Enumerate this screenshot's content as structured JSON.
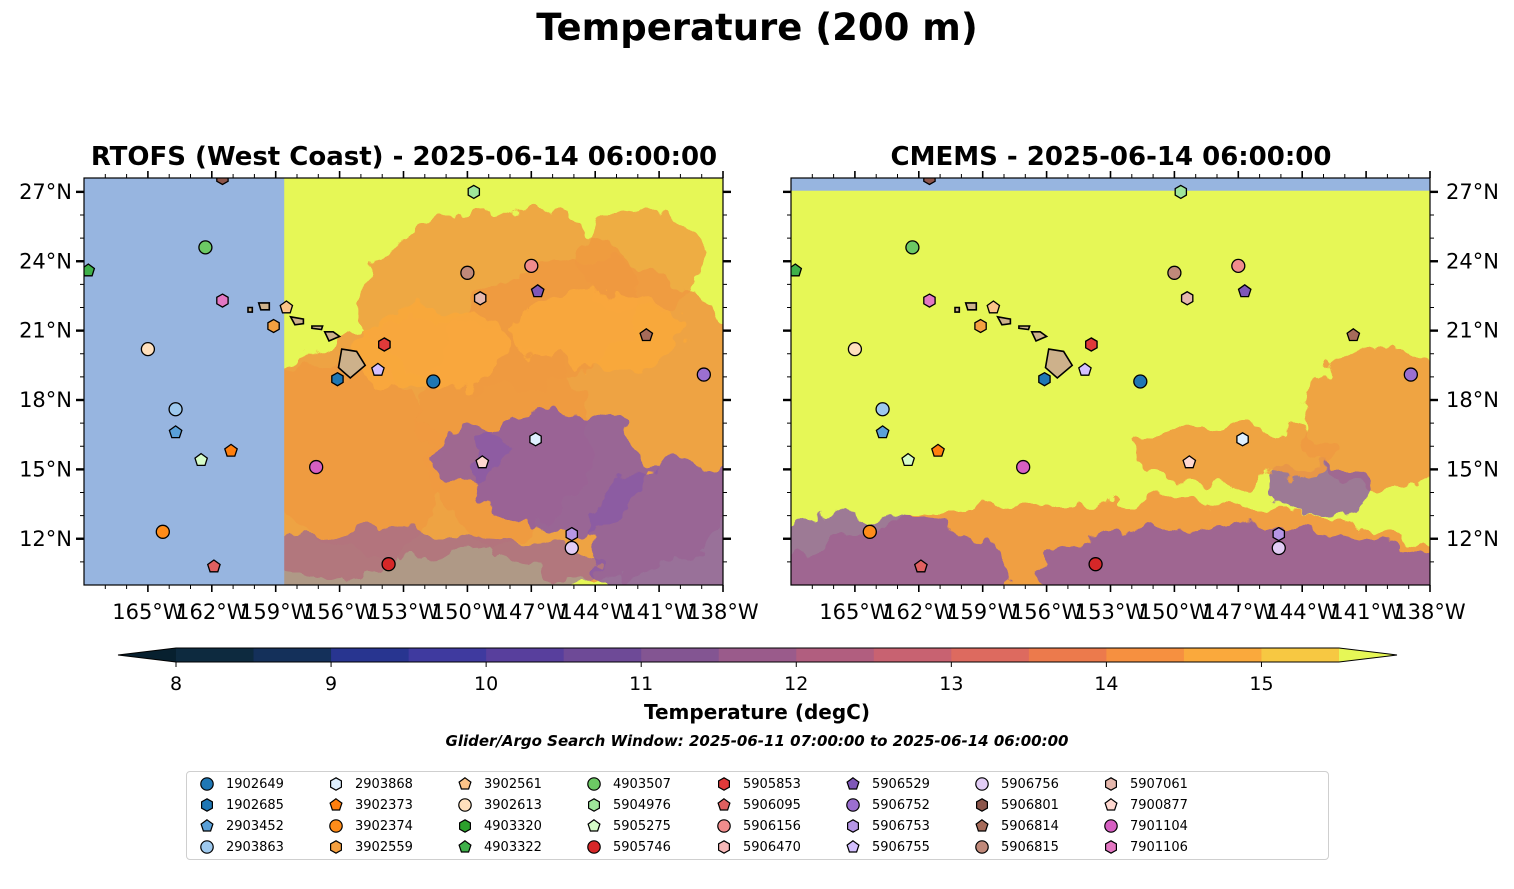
{
  "title": "Temperature (200 m)",
  "panels": [
    {
      "title": "RTOFS (West Coast) - 2025-06-14 06:00:00"
    },
    {
      "title": "CMEMS - 2025-06-14 06:00:00"
    }
  ],
  "map": {
    "lon_range": [
      -168,
      -138
    ],
    "lat_range": [
      10,
      27.6
    ],
    "lon_ticks": [
      {
        "value": -165,
        "label": "165°W"
      },
      {
        "value": -162,
        "label": "162°W"
      },
      {
        "value": -159,
        "label": "159°W"
      },
      {
        "value": -156,
        "label": "156°W"
      },
      {
        "value": -153,
        "label": "153°W"
      },
      {
        "value": -150,
        "label": "150°W"
      },
      {
        "value": -147,
        "label": "147°W"
      },
      {
        "value": -144,
        "label": "144°W"
      },
      {
        "value": -141,
        "label": "141°W"
      },
      {
        "value": -138,
        "label": "138°W"
      }
    ],
    "lat_ticks": [
      {
        "value": 27,
        "label": "27°N"
      },
      {
        "value": 24,
        "label": "24°N"
      },
      {
        "value": 21,
        "label": "21°N"
      },
      {
        "value": 18,
        "label": "18°N"
      },
      {
        "value": 15,
        "label": "15°N"
      },
      {
        "value": 12,
        "label": "12°N"
      }
    ],
    "rtofs_domain_west_edge_lon": -158.6,
    "colors": {
      "no_data": "#97b5e0",
      "land": "#cdb18b",
      "warm": "#e6f756",
      "mid": "#f09a40",
      "cool": "#8b5aa5"
    }
  },
  "colorbar": {
    "label": "Temperature (degC)",
    "ticks": [
      {
        "value": 8,
        "label": "8"
      },
      {
        "value": 9,
        "label": "9"
      },
      {
        "value": 10,
        "label": "10"
      },
      {
        "value": 11,
        "label": "11"
      },
      {
        "value": 12,
        "label": "12"
      },
      {
        "value": 13,
        "label": "13"
      },
      {
        "value": 14,
        "label": "14"
      },
      {
        "value": 15,
        "label": "15"
      }
    ],
    "range": [
      8,
      15.5
    ],
    "levels": [
      {
        "from": 8.0,
        "to": 8.5,
        "color": "#0d2a3f"
      },
      {
        "from": 8.5,
        "to": 9.0,
        "color": "#14305a"
      },
      {
        "from": 9.0,
        "to": 9.5,
        "color": "#283590"
      },
      {
        "from": 9.5,
        "to": 10.0,
        "color": "#3f3a9f"
      },
      {
        "from": 10.0,
        "to": 10.5,
        "color": "#583f9d"
      },
      {
        "from": 10.5,
        "to": 11.0,
        "color": "#6e4a97"
      },
      {
        "from": 11.0,
        "to": 11.5,
        "color": "#835592"
      },
      {
        "from": 11.5,
        "to": 12.0,
        "color": "#9a5b8b"
      },
      {
        "from": 12.0,
        "to": 12.5,
        "color": "#b15e7f"
      },
      {
        "from": 12.5,
        "to": 13.0,
        "color": "#c86271"
      },
      {
        "from": 13.0,
        "to": 13.5,
        "color": "#dd6a5f"
      },
      {
        "from": 13.5,
        "to": 14.0,
        "color": "#ec7a4c"
      },
      {
        "from": 14.0,
        "to": 14.5,
        "color": "#f69040"
      },
      {
        "from": 14.5,
        "to": 15.0,
        "color": "#faa93c"
      },
      {
        "from": 15.0,
        "to": 15.5,
        "color": "#f7c842"
      }
    ],
    "under_color": "#07202f",
    "over_color": "#e6f756"
  },
  "search_window": "Glider/Argo Search Window: 2025-06-11 07:00:00 to 2025-06-14 06:00:00",
  "floats": [
    {
      "id": "1902649",
      "marker": "circle",
      "color": "#1f77b4",
      "lon": -151.6,
      "lat": 18.8
    },
    {
      "id": "1902685",
      "marker": "hexagon",
      "color": "#1f77b4",
      "lon": -156.1,
      "lat": 18.9
    },
    {
      "id": "2903452",
      "marker": "pentagon",
      "color": "#5aa0d8",
      "lon": -163.7,
      "lat": 16.6
    },
    {
      "id": "2903863",
      "marker": "circle",
      "color": "#9ec9ee",
      "lon": -163.7,
      "lat": 17.6
    },
    {
      "id": "2903868",
      "marker": "hexagon",
      "color": "#dff0ff",
      "lon": -146.8,
      "lat": 16.3
    },
    {
      "id": "3902373",
      "marker": "pentagon",
      "color": "#ff7f0e",
      "lon": -161.1,
      "lat": 15.8
    },
    {
      "id": "3902374",
      "marker": "circle",
      "color": "#ff8c1a",
      "lon": -164.3,
      "lat": 12.3
    },
    {
      "id": "3902559",
      "marker": "hexagon",
      "color": "#f5a040",
      "lon": -159.1,
      "lat": 21.2
    },
    {
      "id": "3902561",
      "marker": "pentagon",
      "color": "#fcc488",
      "lon": -158.5,
      "lat": 22.0
    },
    {
      "id": "3902613",
      "marker": "circle",
      "color": "#ffe0bd",
      "lon": -165.0,
      "lat": 20.2
    },
    {
      "id": "4903320",
      "marker": "hexagon",
      "color": "#2ca02c",
      "lon": -153.9,
      "lat": 20.4
    },
    {
      "id": "4903322",
      "marker": "pentagon",
      "color": "#3fb04a",
      "lon": -167.8,
      "lat": 23.6
    },
    {
      "id": "4903507",
      "marker": "circle",
      "color": "#6cc964",
      "lon": -162.3,
      "lat": 24.6
    },
    {
      "id": "5904976",
      "marker": "hexagon",
      "color": "#9ee69a",
      "lon": -149.7,
      "lat": 27.0
    },
    {
      "id": "5905275",
      "marker": "pentagon",
      "color": "#d6fcc9",
      "lon": -162.5,
      "lat": 15.4
    },
    {
      "id": "5905746",
      "marker": "circle",
      "color": "#d62728",
      "lon": -153.7,
      "lat": 10.9
    },
    {
      "id": "5905853",
      "marker": "hexagon",
      "color": "#e03a3a",
      "lon": -153.9,
      "lat": 20.4
    },
    {
      "id": "5906095",
      "marker": "pentagon",
      "color": "#e06060",
      "lon": -161.9,
      "lat": 10.8
    },
    {
      "id": "5906156",
      "marker": "circle",
      "color": "#f08c8c",
      "lon": -147.0,
      "lat": 23.8
    },
    {
      "id": "5906470",
      "marker": "hexagon",
      "color": "#f7b8b8",
      "lon": -149.4,
      "lat": 22.4
    },
    {
      "id": "5906529",
      "marker": "pentagon",
      "color": "#7f58b8",
      "lon": -146.7,
      "lat": 22.7
    },
    {
      "id": "5906752",
      "marker": "circle",
      "color": "#9b6fd0",
      "lon": -138.9,
      "lat": 19.1
    },
    {
      "id": "5906753",
      "marker": "hexagon",
      "color": "#b696e6",
      "lon": -145.1,
      "lat": 12.2
    },
    {
      "id": "5906755",
      "marker": "pentagon",
      "color": "#d4c0ff",
      "lon": -154.2,
      "lat": 19.3
    },
    {
      "id": "5906756",
      "marker": "circle",
      "color": "#e2cdf5",
      "lon": -145.1,
      "lat": 11.6
    },
    {
      "id": "5906801",
      "marker": "hexagon",
      "color": "#8c564b",
      "lon": -161.5,
      "lat": 27.6
    },
    {
      "id": "5906814",
      "marker": "pentagon",
      "color": "#a66b5a",
      "lon": -141.6,
      "lat": 20.8
    },
    {
      "id": "5906815",
      "marker": "circle",
      "color": "#c0897a",
      "lon": -150.0,
      "lat": 23.5
    },
    {
      "id": "5907061",
      "marker": "hexagon",
      "color": "#e6b8ad",
      "lon": -149.4,
      "lat": 22.4
    },
    {
      "id": "7900877",
      "marker": "pentagon",
      "color": "#ffd8d0",
      "lon": -149.3,
      "lat": 15.3
    },
    {
      "id": "7901104",
      "marker": "circle",
      "color": "#d65fc2",
      "lon": -157.1,
      "lat": 15.1
    },
    {
      "id": "7901106",
      "marker": "hexagon",
      "color": "#e377c2",
      "lon": -161.5,
      "lat": 22.3
    }
  ]
}
